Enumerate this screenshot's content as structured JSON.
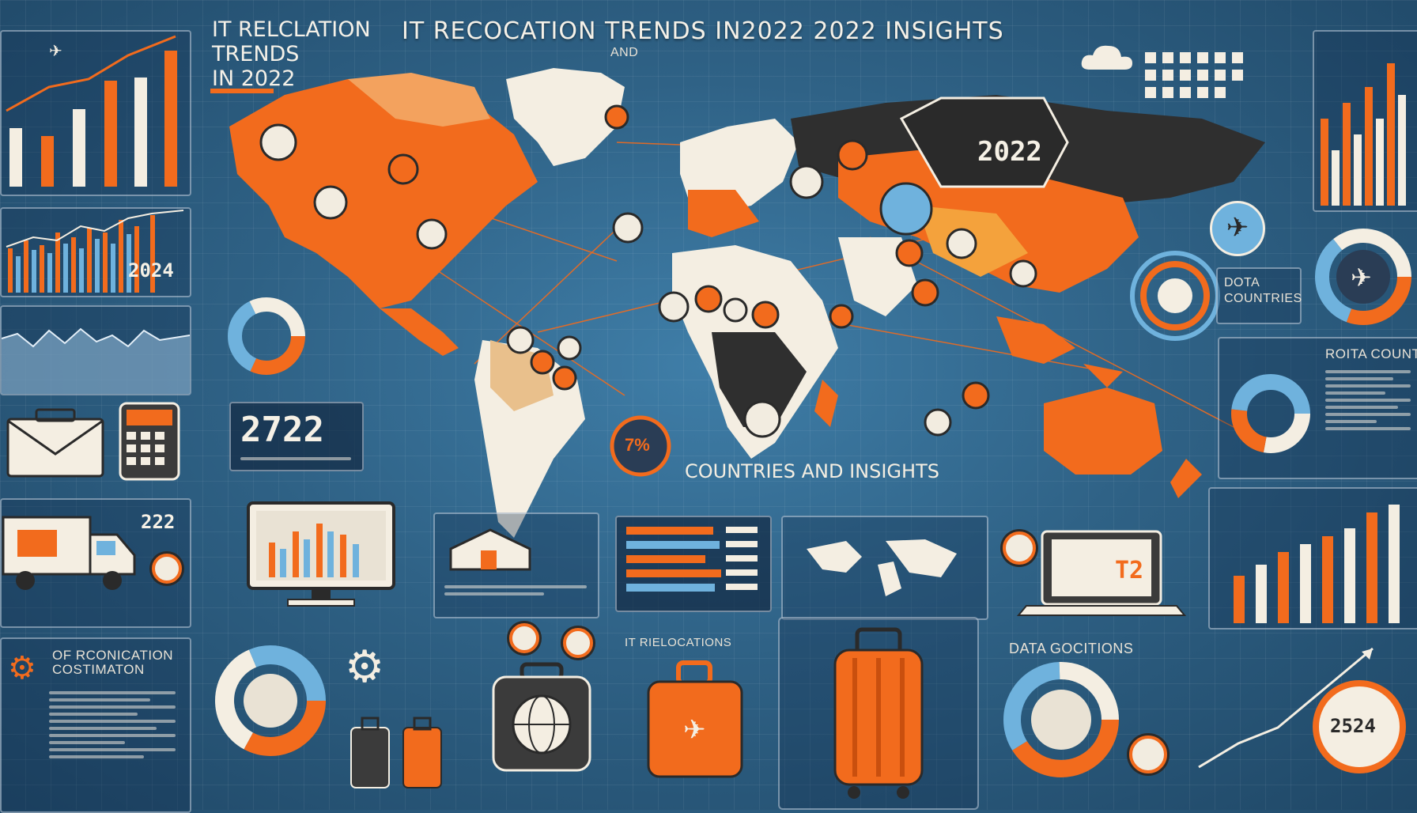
{
  "header": {
    "main_title": "IT RECOCATION TRENDS IN2022 2022 INSIGHTS",
    "main_title_sub": "AND",
    "side_title": "IT RELCLATION\nTRENDS\nIN 2022"
  },
  "map": {
    "year_badge": "2022",
    "center_caption": "COUNTRIES AND INSIGHTS",
    "percent_badge": "7%"
  },
  "left": {
    "chart2_label": "2024",
    "calendar_number": "2722",
    "truck_number": "222",
    "bottom_heading": "OF RCONICATION COSTIMATON"
  },
  "right": {
    "dota_label": "DOTA COUNTRIES",
    "countries_heading": "ROITA COUNTRIES",
    "data_heading": "DATA GOCITIONS",
    "gauge_number": "2524",
    "laptop_text": "T2"
  },
  "middle": {
    "relocations_heading": "IT RIELOCATIONS"
  },
  "colors": {
    "accent": "#f26b1d",
    "cream": "#f4eee2",
    "light_blue": "#6fb2dd",
    "background": "#2f6286"
  },
  "icons": [
    "plane-icon",
    "envelope-icon",
    "suitcase-icon",
    "truck-icon",
    "globe-icon",
    "gear-icon",
    "calculator-icon",
    "cloud-icon"
  ]
}
